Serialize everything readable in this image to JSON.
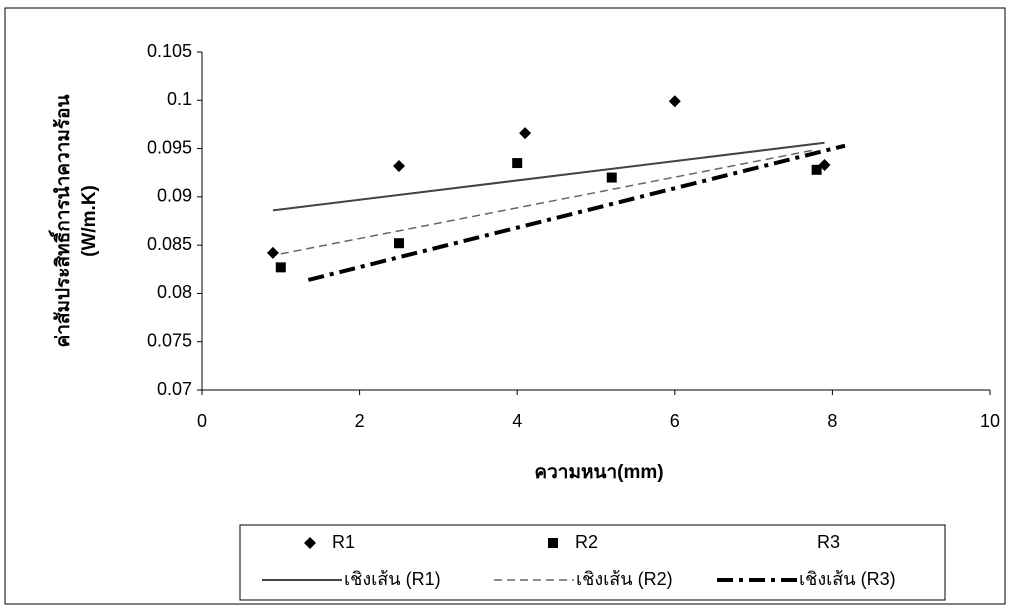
{
  "chart_data": {
    "type": "scatter",
    "x_label": "ความหนา(mm)",
    "y_label": [
      "ค่าสัมประสิทธิ์การนำความร้อน",
      "(W/m.K)"
    ],
    "xlim": [
      0,
      10
    ],
    "xticks": [
      0,
      2,
      4,
      6,
      8,
      10
    ],
    "ylim": [
      0.07,
      0.105
    ],
    "yticks": [
      0.07,
      0.075,
      0.08,
      0.085,
      0.09,
      0.095,
      0.1,
      0.105
    ],
    "grid": false,
    "legend": "bottom",
    "series": [
      {
        "name": "R1",
        "color": "#000000",
        "marker": "diamond",
        "x": [
          0.9,
          2.5,
          4.1,
          6.0,
          7.9
        ],
        "values": [
          0.0842,
          0.0932,
          0.0966,
          0.0999,
          0.0933
        ]
      },
      {
        "name": "R2",
        "color": "#000000",
        "marker": "square",
        "x": [
          1.0,
          2.5,
          4.0,
          5.2,
          7.8
        ],
        "values": [
          0.0827,
          0.0852,
          0.0935,
          0.092,
          0.0928
        ]
      },
      {
        "name": "R3",
        "color": "#000000",
        "marker": "none",
        "x": [],
        "values": []
      }
    ],
    "trendlines": [
      {
        "name": "เชิงเส้น (R1)",
        "color": "#444444",
        "style": "solid",
        "x": [
          0.9,
          7.9
        ],
        "values": [
          0.0886,
          0.0956
        ]
      },
      {
        "name": "เชิงเส้น (R2)",
        "color": "#666666",
        "style": "dashed",
        "x": [
          1.0,
          7.8
        ],
        "values": [
          0.0841,
          0.0949
        ]
      },
      {
        "name": "เชิงเส้น (R3)",
        "color": "#000000",
        "style": "dashdot",
        "x": [
          1.35,
          8.16
        ],
        "values": [
          0.0814,
          0.0953
        ]
      }
    ]
  }
}
